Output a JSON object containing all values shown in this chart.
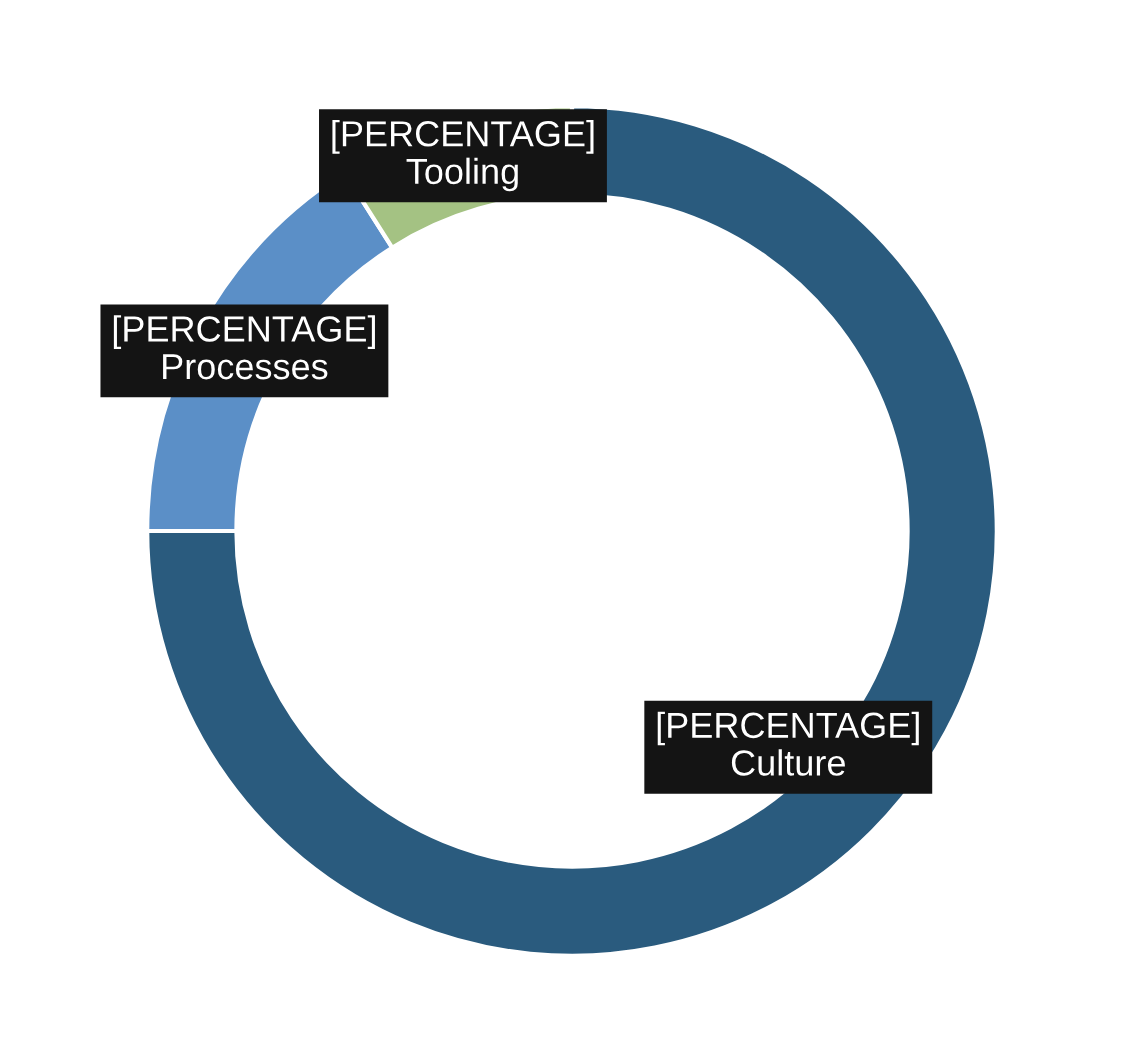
{
  "chart_data": {
    "type": "donut",
    "categories": [
      "Culture",
      "Processes",
      "Tooling"
    ],
    "values": [
      75,
      16,
      9
    ],
    "colors": [
      "#2a5b7e",
      "#5b8fc7",
      "#a4c283"
    ],
    "value_labels": [
      "[PERCENTAGE]",
      "[PERCENTAGE]",
      "[PERCENTAGE]"
    ]
  }
}
